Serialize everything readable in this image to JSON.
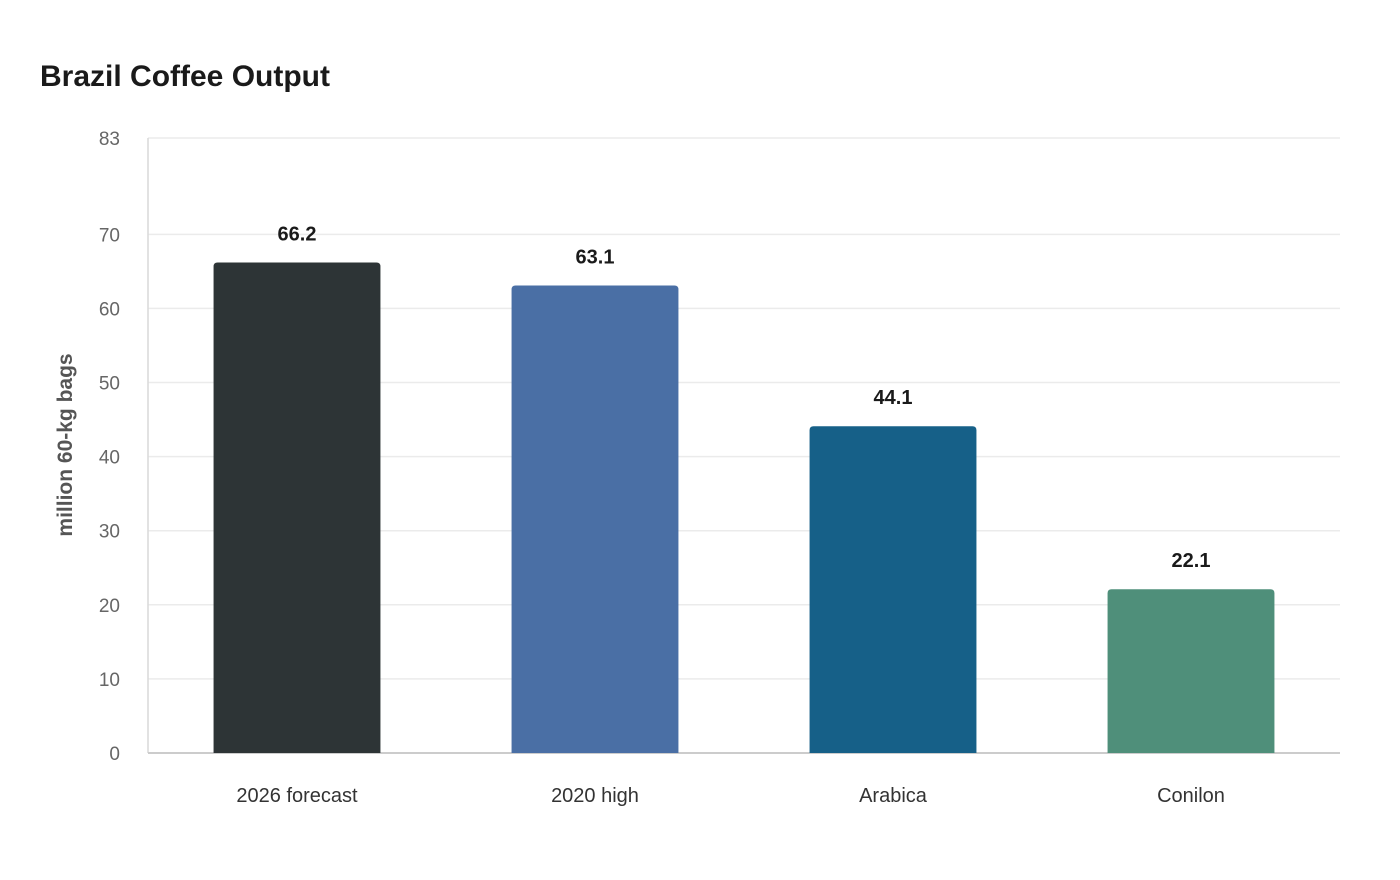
{
  "chart_data": {
    "type": "bar",
    "title": "Brazil Coffee Output",
    "xlabel": "",
    "ylabel": "million 60-kg bags",
    "categories": [
      "2026 forecast",
      "2020 high",
      "Arabica",
      "Conilon"
    ],
    "values": [
      66.2,
      63.1,
      44.1,
      22.1
    ],
    "colors": [
      "#2d3436",
      "#4a6fa5",
      "#166088",
      "#4f8f7a"
    ],
    "ylim": [
      0,
      83
    ],
    "yticks": [
      0,
      10,
      20,
      30,
      40,
      50,
      60,
      70,
      83
    ],
    "grid": true,
    "legend": "none"
  }
}
